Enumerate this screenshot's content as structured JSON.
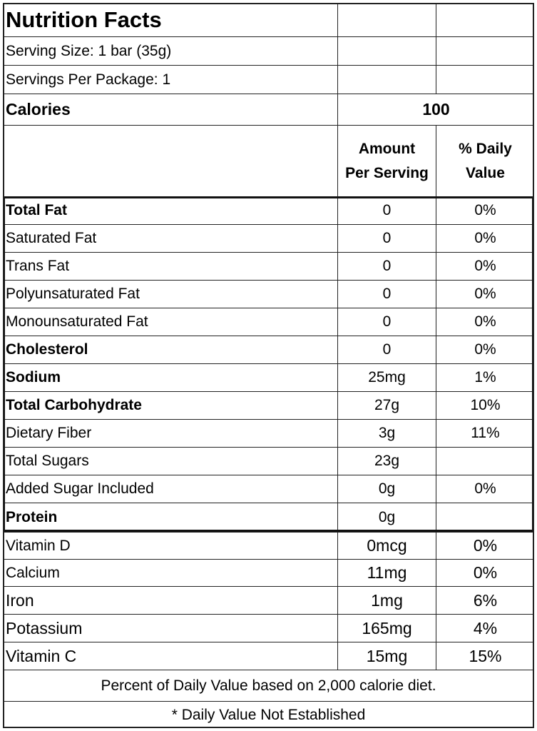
{
  "title": "Nutrition Facts",
  "serving_size": "Serving Size: 1 bar (35g)",
  "servings_per_package": "Servings Per Package: 1",
  "calories_label": "Calories",
  "calories_value": "100",
  "header": {
    "amount_line1": "Amount",
    "amount_line2": "Per Serving",
    "dv_line1": "% Daily",
    "dv_line2": "Value"
  },
  "nutrients": [
    {
      "name": "Total Fat",
      "amount": "0",
      "dv": "0%"
    },
    {
      "name": "Saturated Fat",
      "amount": "0",
      "dv": "0%"
    },
    {
      "name": "Trans Fat",
      "amount": "0",
      "dv": "0%"
    },
    {
      "name": "Polyunsaturated Fat",
      "amount": "0",
      "dv": "0%"
    },
    {
      "name": "Monounsaturated Fat",
      "amount": "0",
      "dv": "0%"
    },
    {
      "name": "Cholesterol",
      "amount": "0",
      "dv": "0%"
    },
    {
      "name": "Sodium",
      "amount": "25mg",
      "dv": "1%"
    },
    {
      "name": "Total Carbohydrate",
      "amount": "27g",
      "dv": "10%"
    },
    {
      "name": "Dietary Fiber",
      "amount": "3g",
      "dv": "11%"
    },
    {
      "name": "Total Sugars",
      "amount": "23g",
      "dv": ""
    },
    {
      "name": "Added Sugar Included",
      "amount": "0g",
      "dv": "0%"
    },
    {
      "name": "Protein",
      "amount": "0g",
      "dv": ""
    }
  ],
  "vitamins": [
    {
      "name": "Vitamin D",
      "amount": "0mcg",
      "dv": "0%"
    },
    {
      "name": "Calcium",
      "amount": "11mg",
      "dv": "0%"
    },
    {
      "name": "Iron",
      "amount": "1mg",
      "dv": "6%"
    },
    {
      "name": "Potassium",
      "amount": "165mg",
      "dv": "4%"
    },
    {
      "name": "Vitamin C",
      "amount": "15mg",
      "dv": "15%"
    }
  ],
  "footnote_1": "Percent of Daily Value based on 2,000 calorie diet.",
  "footnote_2": "* Daily Value Not Established"
}
